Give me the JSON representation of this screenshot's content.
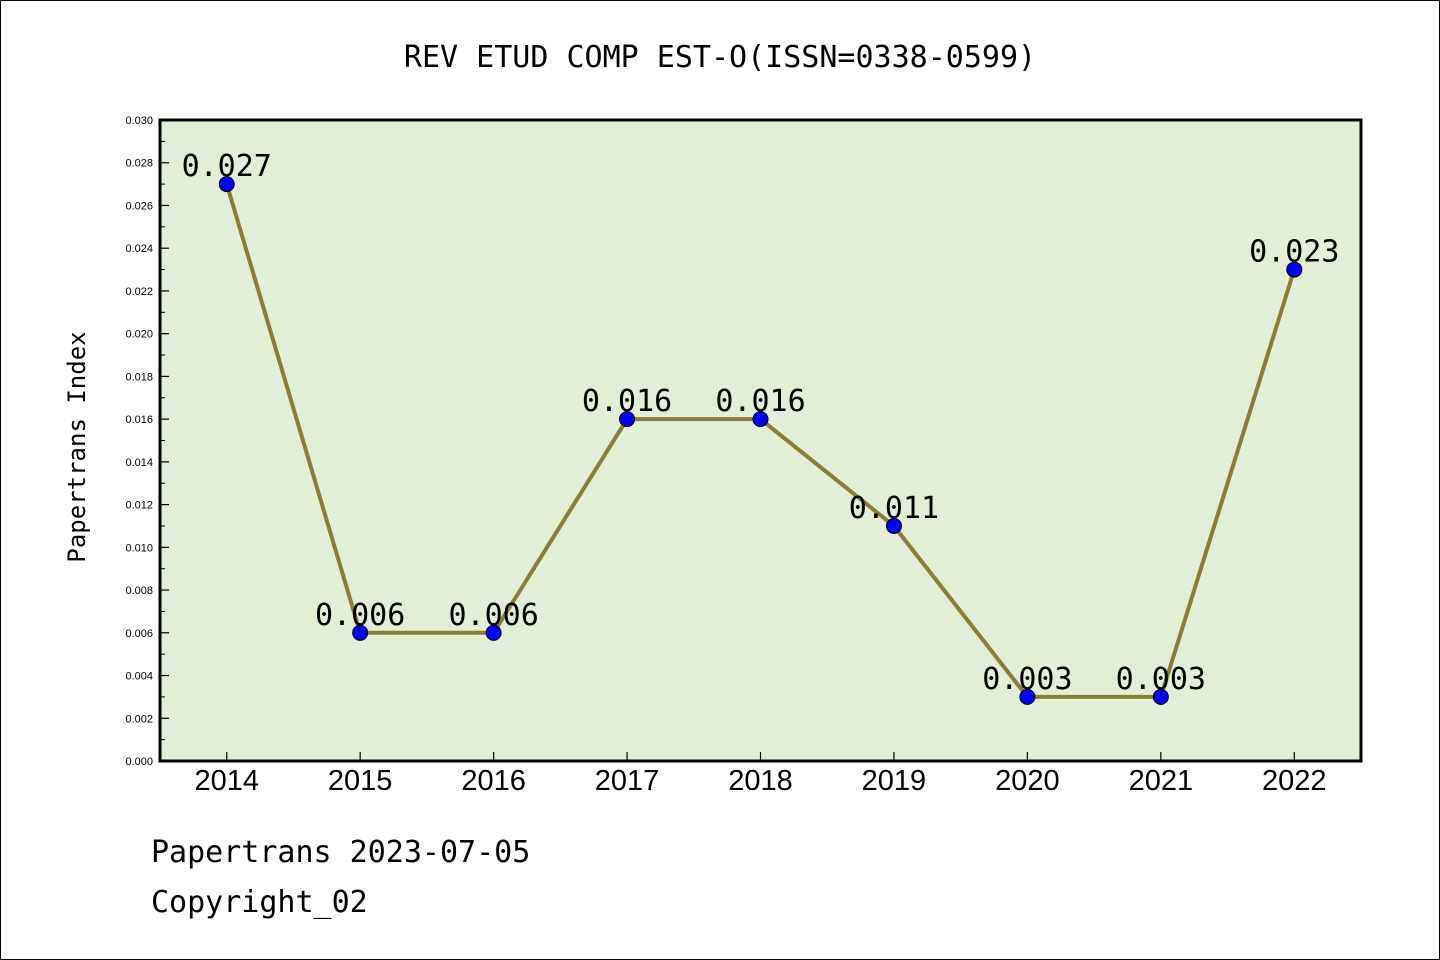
{
  "chart_data": {
    "type": "line",
    "title": "REV ETUD COMP EST-O(ISSN=0338-0599)",
    "xlabel": "",
    "ylabel": "Papertrans Index",
    "categories": [
      "2014",
      "2015",
      "2016",
      "2017",
      "2018",
      "2019",
      "2020",
      "2021",
      "2022"
    ],
    "values": [
      0.027,
      0.006,
      0.006,
      0.016,
      0.016,
      0.011,
      0.003,
      0.003,
      0.023
    ],
    "data_labels": [
      "0.027",
      "0.006",
      "0.006",
      "0.016",
      "0.016",
      "0.011",
      "0.003",
      "0.003",
      "0.023"
    ],
    "ylim": [
      0,
      0.03
    ],
    "yticks": [
      "0.000",
      "0.002",
      "0.004",
      "0.006",
      "0.008",
      "0.010",
      "0.012",
      "0.014",
      "0.016",
      "0.018",
      "0.020",
      "0.022",
      "0.024",
      "0.026",
      "0.028",
      "0.030"
    ],
    "grid": false,
    "colors": {
      "plot_background": "#e2efd6",
      "line": "#8b7d33",
      "marker": "#0000ff"
    }
  },
  "footer": {
    "date_line": "Papertrans 2023-07-05",
    "copyright": "Copyright_02"
  }
}
